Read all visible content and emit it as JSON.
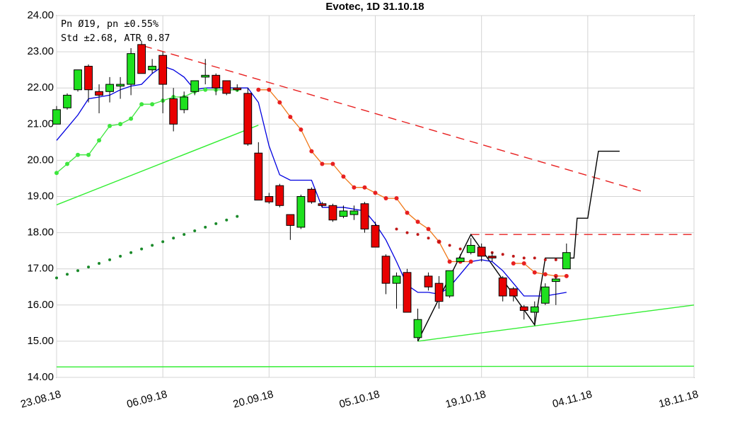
{
  "chart_data": {
    "type": "candlestick",
    "title": "Evotec, 1D 31.10.18",
    "annotations": [
      "Pn  Ø19, pn ±0.55%",
      "Std ±2.68, ATR 0.87"
    ],
    "up_color": "#1ee01e",
    "down_color": "#e80000",
    "grid": true,
    "xlim": [
      0,
      60
    ],
    "xticks": [
      {
        "value": 0,
        "label": "23.08.18"
      },
      {
        "value": 10,
        "label": "06.09.18"
      },
      {
        "value": 20,
        "label": "20.09.18"
      },
      {
        "value": 30,
        "label": "05.10.18"
      },
      {
        "value": 40,
        "label": "19.10.18"
      },
      {
        "value": 50,
        "label": "04.11.18"
      },
      {
        "value": 60,
        "label": "18.11.18"
      }
    ],
    "ylim": [
      14,
      24
    ],
    "yticks": [
      {
        "value": 14,
        "label": "14.00"
      },
      {
        "value": 15,
        "label": "15.00"
      },
      {
        "value": 16,
        "label": "16.00"
      },
      {
        "value": 17,
        "label": "17.00"
      },
      {
        "value": 18,
        "label": "18.00"
      },
      {
        "value": 19,
        "label": "19.00"
      },
      {
        "value": 20,
        "label": "20.00"
      },
      {
        "value": 21,
        "label": "21.00"
      },
      {
        "value": 22,
        "label": "22.00"
      },
      {
        "value": 23,
        "label": "23.00"
      },
      {
        "value": 24,
        "label": "24.00"
      }
    ],
    "open": [
      21.0,
      21.45,
      21.95,
      22.6,
      21.9,
      21.9,
      22.05,
      22.1,
      23.2,
      22.5,
      22.9,
      21.7,
      21.4,
      21.9,
      22.3,
      22.35,
      22.2,
      22.0,
      21.85,
      20.2,
      19.0,
      19.3,
      18.5,
      18.15,
      19.2,
      18.8,
      18.75,
      18.45,
      18.5,
      18.8,
      18.2,
      17.35,
      16.6,
      16.9,
      15.1,
      16.8,
      16.6,
      16.25,
      17.2,
      17.45,
      17.6,
      17.35,
      16.75,
      16.45,
      15.95,
      15.8,
      16.05,
      16.65,
      17.0
    ],
    "high": [
      21.5,
      21.85,
      22.5,
      22.65,
      22.1,
      22.3,
      22.3,
      23.1,
      23.3,
      22.8,
      23.0,
      22.0,
      21.9,
      22.2,
      22.8,
      22.4,
      22.2,
      22.1,
      22.0,
      20.5,
      19.1,
      19.35,
      18.5,
      19.05,
      19.25,
      18.85,
      18.8,
      18.75,
      18.75,
      18.85,
      18.3,
      17.4,
      16.9,
      17.0,
      15.9,
      16.9,
      16.8,
      16.95,
      17.4,
      17.85,
      17.7,
      17.45,
      16.8,
      16.5,
      16.0,
      16.1,
      16.6,
      16.8,
      17.7
    ],
    "low": [
      21.0,
      21.4,
      21.9,
      21.6,
      21.3,
      21.6,
      21.7,
      21.8,
      22.4,
      22.4,
      21.3,
      20.8,
      21.3,
      21.8,
      22.1,
      21.8,
      21.8,
      21.9,
      20.4,
      18.9,
      18.8,
      18.7,
      17.8,
      18.1,
      18.8,
      18.7,
      18.3,
      18.4,
      18.35,
      18.0,
      17.6,
      16.3,
      15.9,
      15.8,
      15.0,
      16.4,
      15.9,
      16.2,
      17.2,
      17.4,
      17.2,
      17.2,
      16.1,
      16.1,
      15.6,
      15.45,
      16.0,
      16.0,
      17.0
    ],
    "close": [
      21.4,
      21.8,
      22.5,
      21.95,
      21.8,
      22.1,
      22.1,
      22.95,
      22.4,
      22.6,
      22.1,
      21.0,
      21.75,
      22.2,
      22.35,
      22.0,
      21.85,
      21.95,
      20.45,
      18.9,
      18.85,
      18.75,
      18.2,
      19.0,
      18.85,
      18.75,
      18.35,
      18.6,
      18.6,
      18.1,
      17.6,
      16.6,
      16.8,
      15.8,
      15.6,
      16.5,
      16.1,
      16.95,
      17.3,
      17.65,
      17.35,
      17.3,
      16.25,
      16.25,
      15.85,
      15.95,
      16.5,
      16.72,
      17.45
    ],
    "indicators": [
      {
        "color": "#0000e0",
        "values": [
          20.55,
          20.9,
          21.25,
          21.7,
          21.75,
          21.8,
          21.95,
          22.05,
          22.1,
          22.4,
          22.6,
          22.5,
          22.3,
          21.95,
          22.0,
          22.0,
          22.0,
          22.0,
          22.0,
          21.6,
          20.4,
          19.6,
          19.45,
          19.45,
          19.45,
          18.7,
          18.7,
          18.7,
          18.65,
          18.6,
          18.25,
          17.8,
          17.2,
          16.55,
          16.35,
          16.35,
          16.3,
          16.5,
          16.85,
          17.2,
          17.25,
          17.2,
          16.95,
          16.6,
          16.25,
          16.25,
          16.25,
          16.3,
          16.35
        ]
      },
      {
        "color": "#3ee63e",
        "marker": "dot",
        "values": [
          19.65,
          19.9,
          20.15,
          20.15,
          20.55,
          20.95,
          21.0,
          21.15,
          21.55,
          21.55,
          21.65,
          21.75,
          21.75,
          21.9,
          21.95,
          21.95,
          21.95,
          21.95,
          null,
          null,
          null,
          null,
          null,
          null,
          null,
          null,
          null,
          null,
          null,
          null,
          null,
          null,
          null,
          null,
          null,
          null,
          null,
          null,
          null,
          null,
          null,
          null,
          null,
          null,
          null,
          null,
          null,
          null,
          null
        ]
      },
      {
        "color": "#f07818",
        "marker": "dot",
        "marker_color": "#e82020",
        "values": [
          null,
          null,
          null,
          null,
          null,
          null,
          null,
          null,
          null,
          null,
          null,
          null,
          null,
          null,
          null,
          null,
          null,
          null,
          null,
          21.95,
          21.95,
          21.6,
          21.2,
          20.85,
          20.25,
          19.9,
          19.9,
          19.55,
          19.25,
          19.25,
          19.1,
          18.95,
          18.95,
          18.55,
          18.3,
          18.1,
          17.75,
          17.2,
          17.2,
          17.2,
          null,
          null,
          null,
          17.15,
          17.15,
          16.9,
          16.85,
          16.8,
          16.8
        ]
      },
      {
        "marker": "dot",
        "marker_color": "#c01818",
        "values": [
          null,
          null,
          null,
          null,
          null,
          null,
          null,
          null,
          null,
          null,
          null,
          null,
          null,
          null,
          null,
          null,
          null,
          null,
          null,
          null,
          null,
          null,
          null,
          null,
          null,
          null,
          null,
          null,
          null,
          null,
          null,
          null,
          18.1,
          18.0,
          17.95,
          17.85,
          17.75,
          17.65,
          17.55,
          17.5,
          17.45,
          17.45,
          17.4,
          17.35,
          17.3,
          17.3,
          17.25,
          17.25,
          null
        ]
      },
      {
        "marker": "dot",
        "marker_color": "#1a8a2a",
        "values": [
          16.75,
          16.85,
          16.95,
          17.05,
          17.15,
          17.25,
          17.35,
          17.45,
          17.55,
          17.65,
          17.75,
          17.85,
          17.95,
          18.05,
          18.15,
          18.25,
          18.35,
          18.45,
          null,
          null,
          null,
          null,
          null,
          null,
          null,
          null,
          null,
          null,
          null,
          null,
          null,
          null,
          null,
          null,
          null,
          null,
          null,
          null,
          null,
          null,
          null,
          null,
          null,
          null,
          null,
          null,
          null,
          null,
          null
        ]
      }
    ],
    "trendlines": [
      {
        "color": "#e82020",
        "dash": true,
        "x": [
          8.2,
          55
        ],
        "values": [
          23.16,
          19.15
        ]
      },
      {
        "color": "#e82020",
        "dash": true,
        "x": [
          39,
          60
        ],
        "values": [
          17.95,
          17.95
        ]
      },
      {
        "color": "#33ee33",
        "x": [
          0,
          19
        ],
        "values": [
          18.77,
          20.97
        ]
      },
      {
        "color": "#33ee33",
        "x": [
          34,
          60
        ],
        "values": [
          15.0,
          16.0
        ]
      },
      {
        "color": "#33ee33",
        "x": [
          0,
          60
        ],
        "values": [
          14.29,
          14.31
        ]
      },
      {
        "color": "#000000",
        "x": [
          34,
          39,
          45,
          46,
          48.7,
          49,
          50,
          51,
          53
        ],
        "values": [
          15.0,
          17.95,
          15.45,
          17.3,
          17.3,
          18.4,
          18.4,
          20.25,
          20.25
        ]
      }
    ]
  }
}
